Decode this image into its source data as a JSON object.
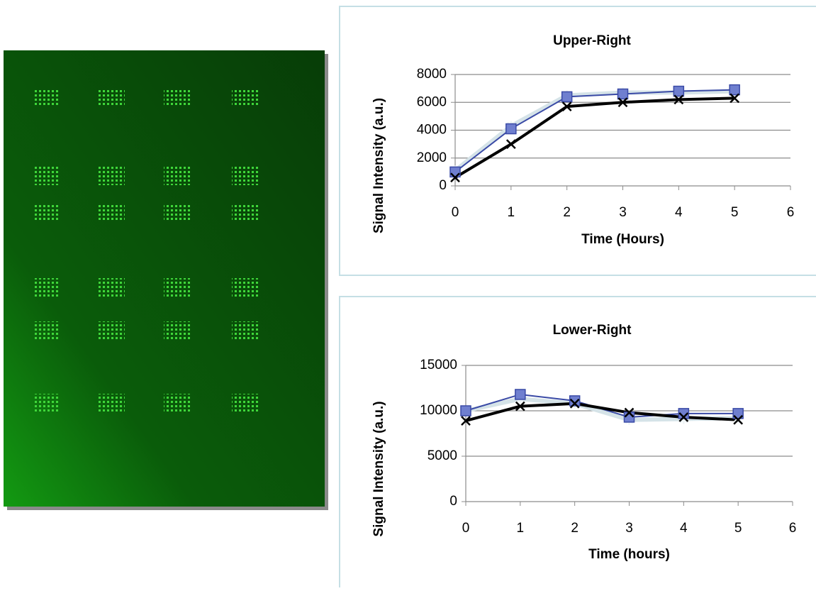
{
  "chart_data": [
    {
      "type": "line",
      "title": "Upper-Right",
      "xlabel": "Time (Hours)",
      "ylabel": "Signal Intensity (a.u.)",
      "x": [
        0,
        1,
        2,
        3,
        4,
        5
      ],
      "xlim": [
        0,
        6
      ],
      "xticks": [
        0,
        1,
        2,
        3,
        4,
        5,
        6
      ],
      "ylim": [
        0,
        8000
      ],
      "yticks": [
        0,
        2000,
        4000,
        6000,
        8000
      ],
      "grid": true,
      "series": [
        {
          "color": "#d5e3e8",
          "marker": "asterisk",
          "values": [
            1100,
            4300,
            6500,
            6700,
            6700,
            6800
          ]
        },
        {
          "color": "#3a4aa6",
          "marker": "square",
          "values": [
            1000,
            4100,
            6400,
            6600,
            6800,
            6900
          ]
        },
        {
          "color": "#000000",
          "marker": "x",
          "values": [
            600,
            3000,
            5700,
            6000,
            6200,
            6300
          ]
        }
      ]
    },
    {
      "type": "line",
      "title": "Lower-Right",
      "xlabel": "Time (hours)",
      "ylabel": "Signal Intensity (a.u.)",
      "x": [
        0,
        1,
        2,
        3,
        4,
        5
      ],
      "xlim": [
        0,
        6
      ],
      "xticks": [
        0,
        1,
        2,
        3,
        4,
        5,
        6
      ],
      "ylim": [
        0,
        15000
      ],
      "yticks": [
        0,
        5000,
        10000,
        15000
      ],
      "grid": true,
      "series": [
        {
          "color": "#d5e3e8",
          "marker": "asterisk",
          "values": [
            10000,
            11300,
            10800,
            9000,
            9100,
            9200
          ]
        },
        {
          "color": "#3a4aa6",
          "marker": "square",
          "values": [
            10000,
            11800,
            11100,
            9300,
            9700,
            9700
          ]
        },
        {
          "color": "#000000",
          "marker": "x",
          "values": [
            8900,
            10500,
            10800,
            9800,
            9300,
            9000
          ]
        }
      ]
    }
  ]
}
